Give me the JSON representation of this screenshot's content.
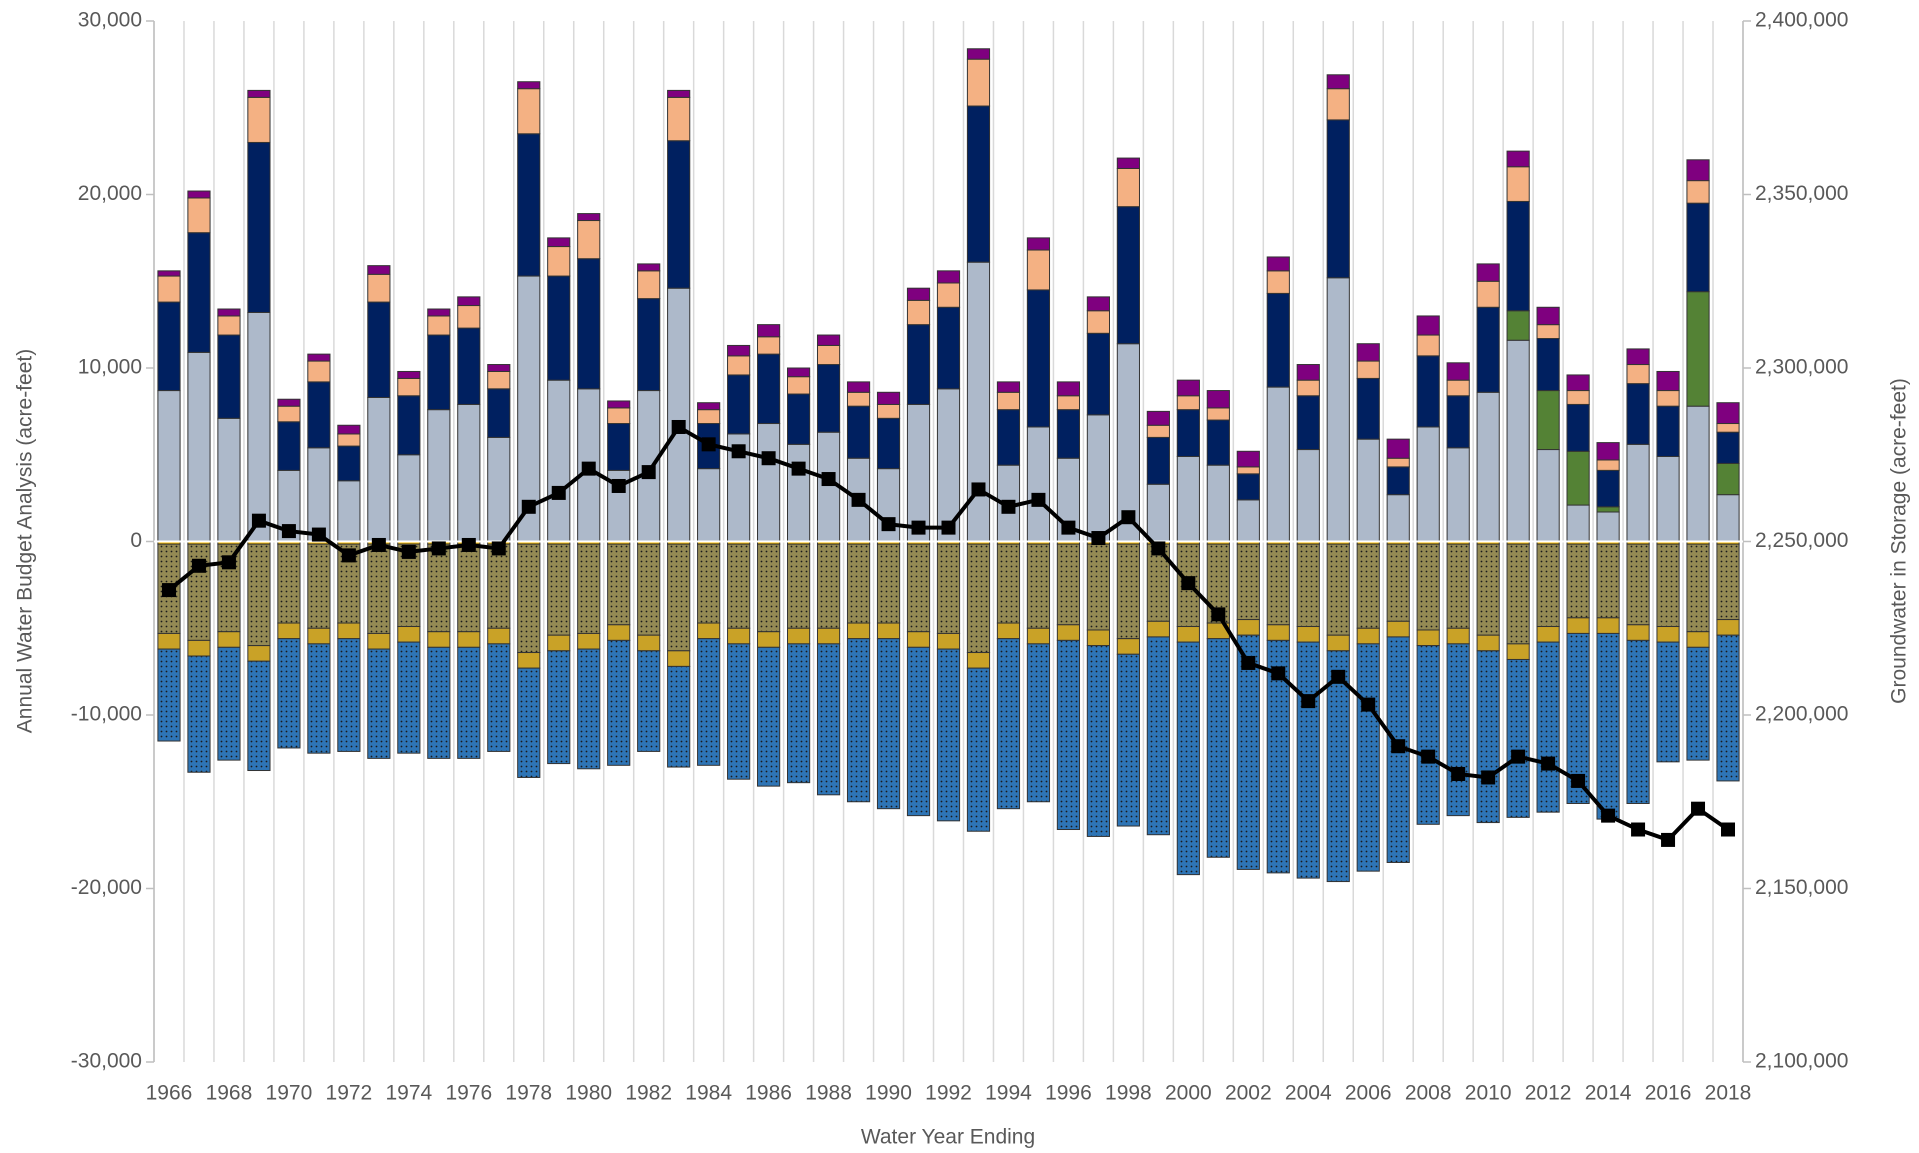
{
  "chart_data": {
    "type": "bar",
    "xlabel": "Water Year Ending",
    "ylabel": "Annual Water Budget Analysis (acre-feet)",
    "y2label": "Groundwater in Storage (acre-feet)",
    "categories": [
      "1966",
      null,
      "1968",
      null,
      "1970",
      null,
      "1972",
      null,
      "1974",
      null,
      "1976",
      null,
      "1978",
      null,
      "1980",
      null,
      "1982",
      null,
      "1984",
      null,
      "1986",
      null,
      "1988",
      null,
      "1990",
      null,
      "1992",
      null,
      "1994",
      null,
      "1996",
      null,
      "1998",
      null,
      "2000",
      null,
      "2002",
      null,
      "2004",
      null,
      "2006",
      null,
      "2008",
      null,
      "2010",
      null,
      "2012",
      null,
      "2014",
      null,
      "2016",
      null,
      "2018"
    ],
    "ylim": [
      -30000,
      30000
    ],
    "yticks": [
      {
        "value": -30000,
        "label": "-30,000"
      },
      {
        "value": -20000,
        "label": "-20,000"
      },
      {
        "value": -10000,
        "label": "-10,000"
      },
      0,
      {
        "value": 10000,
        "label": "10,000"
      },
      {
        "value": 20000,
        "label": "20,000"
      },
      {
        "value": 30000,
        "label": "30,000"
      }
    ],
    "y2lim": [
      2100000,
      2400000
    ],
    "y2ticks": [
      {
        "value": 2100000,
        "label": "2,100,000"
      },
      {
        "value": 2150000,
        "label": "2,150,000"
      },
      {
        "value": 2200000,
        "label": "2,200,000"
      },
      {
        "value": 2250000,
        "label": "2,250,000"
      },
      {
        "value": 2300000,
        "label": "2,300,000"
      },
      {
        "value": 2350000,
        "label": "2,350,000"
      },
      {
        "value": 2400000,
        "label": "2,400,000"
      }
    ],
    "series": [
      {
        "color": "#adb9ca",
        "values": [
          8700,
          10900,
          7100,
          13200,
          4100,
          5400,
          3500,
          8300,
          5000,
          7600,
          7900,
          6000,
          15300,
          9300,
          8800,
          4100,
          8700,
          14600,
          4200,
          6200,
          6800,
          5600,
          6300,
          4800,
          4200,
          7900,
          8800,
          16100,
          4400,
          6600,
          4800,
          7300,
          11400,
          3300,
          4900,
          4400,
          2400,
          8900,
          5300,
          15200,
          5900,
          2700,
          6600,
          5400,
          8600,
          11600,
          5300,
          2100,
          1700,
          5600,
          4900,
          7800,
          2700
        ]
      },
      {
        "color": "#548235",
        "values": [
          0,
          0,
          0,
          0,
          0,
          0,
          0,
          0,
          0,
          0,
          0,
          0,
          0,
          0,
          0,
          0,
          0,
          0,
          0,
          0,
          0,
          0,
          0,
          0,
          0,
          0,
          0,
          0,
          0,
          0,
          0,
          0,
          0,
          0,
          0,
          0,
          0,
          0,
          0,
          0,
          0,
          0,
          0,
          0,
          0,
          1700,
          3400,
          3100,
          300,
          0,
          0,
          6600,
          1800
        ]
      },
      {
        "color": "#002060",
        "values": [
          5100,
          6900,
          4800,
          9800,
          2800,
          3800,
          2000,
          5500,
          3400,
          4300,
          4400,
          2800,
          8200,
          6000,
          7500,
          2700,
          5300,
          8500,
          2600,
          3400,
          4000,
          2900,
          3900,
          3000,
          2900,
          4600,
          4700,
          9000,
          3200,
          7900,
          2800,
          4700,
          7900,
          2700,
          2700,
          2600,
          1500,
          5400,
          3100,
          9100,
          3500,
          1600,
          4100,
          3000,
          4900,
          6300,
          3000,
          2700,
          2100,
          3500,
          2900,
          5100,
          1800
        ]
      },
      {
        "color": "#f4b183",
        "values": [
          1500,
          2000,
          1100,
          2600,
          900,
          1200,
          700,
          1600,
          1000,
          1100,
          1300,
          1000,
          2600,
          1700,
          2200,
          900,
          1600,
          2500,
          800,
          1100,
          1000,
          1000,
          1100,
          800,
          800,
          1400,
          1400,
          2700,
          1000,
          2300,
          800,
          1300,
          2200,
          700,
          800,
          700,
          400,
          1300,
          900,
          1800,
          1000,
          500,
          1200,
          900,
          1500,
          2000,
          800,
          800,
          600,
          1100,
          900,
          1300,
          500
        ]
      },
      {
        "color": "#7f007f",
        "values": [
          300,
          400,
          400,
          400,
          400,
          400,
          500,
          500,
          400,
          400,
          500,
          400,
          400,
          500,
          400,
          400,
          400,
          400,
          400,
          600,
          700,
          500,
          600,
          600,
          700,
          700,
          700,
          600,
          600,
          700,
          800,
          800,
          600,
          800,
          900,
          1000,
          900,
          800,
          900,
          800,
          1000,
          1100,
          1100,
          1000,
          1000,
          900,
          1000,
          900,
          1000,
          900,
          1100,
          1200,
          1200
        ]
      },
      {
        "color": "#ffc000",
        "values": [
          -150,
          -150,
          -150,
          -150,
          -150,
          -150,
          -150,
          -150,
          -150,
          -150,
          -150,
          -150,
          -150,
          -150,
          -150,
          -150,
          -150,
          -150,
          -150,
          -150,
          -150,
          -150,
          -150,
          -150,
          -150,
          -150,
          -150,
          -150,
          -150,
          -150,
          -150,
          -150,
          -150,
          -150,
          -150,
          -150,
          -150,
          -150,
          -150,
          -150,
          -150,
          -150,
          -150,
          -150,
          -150,
          -150,
          -150,
          -150,
          -150,
          -150,
          -150,
          -150,
          -150
        ]
      },
      {
        "color": "#948a54",
        "pattern": "dots",
        "values": [
          -5150,
          -5550,
          -5050,
          -5850,
          -4550,
          -4850,
          -4550,
          -5150,
          -4750,
          -5050,
          -5050,
          -4850,
          -6250,
          -5250,
          -5150,
          -4650,
          -5250,
          -6150,
          -4550,
          -4850,
          -5050,
          -4850,
          -4850,
          -4550,
          -4550,
          -5050,
          -5150,
          -6250,
          -4550,
          -4850,
          -4650,
          -4950,
          -5450,
          -4450,
          -4750,
          -4550,
          -4350,
          -4650,
          -4750,
          -5250,
          -4850,
          -4450,
          -4950,
          -4850,
          -5250,
          -5750,
          -4750,
          -4250,
          -4250,
          -4650,
          -4750,
          -5050,
          -4350
        ]
      },
      {
        "color": "#c9a227",
        "values": [
          -900,
          -900,
          -900,
          -900,
          -900,
          -900,
          -900,
          -900,
          -900,
          -900,
          -900,
          -900,
          -900,
          -900,
          -900,
          -900,
          -900,
          -900,
          -900,
          -900,
          -900,
          -900,
          -900,
          -900,
          -900,
          -900,
          -900,
          -900,
          -900,
          -900,
          -900,
          -900,
          -900,
          -900,
          -900,
          -900,
          -900,
          -900,
          -900,
          -900,
          -900,
          -900,
          -900,
          -900,
          -900,
          -900,
          -900,
          -900,
          -900,
          -900,
          -900,
          -900,
          -900
        ]
      },
      {
        "color": "#2e75b6",
        "pattern": "dots",
        "values": [
          -5300,
          -6700,
          -6500,
          -6300,
          -6300,
          -6300,
          -6500,
          -6300,
          -6400,
          -6400,
          -6400,
          -6200,
          -6300,
          -6500,
          -6900,
          -7200,
          -5800,
          -5800,
          -7300,
          -7800,
          -8000,
          -8000,
          -8700,
          -9400,
          -9800,
          -9700,
          -9900,
          -9400,
          -9800,
          -9100,
          -10900,
          -11000,
          -9900,
          -11400,
          -13400,
          -12600,
          -13500,
          -13400,
          -13600,
          -13300,
          -13100,
          -13000,
          -10300,
          -9900,
          -9900,
          -9100,
          -9800,
          -9800,
          -10700,
          -9400,
          -6900,
          -6500,
          -8400
        ]
      },
      {
        "type": "line",
        "axis": "y2",
        "color": "#000000",
        "values": [
          2236000,
          2243000,
          2244000,
          2256000,
          2253000,
          2252000,
          2246000,
          2249000,
          2247000,
          2248000,
          2249000,
          2248000,
          2260000,
          2264000,
          2271000,
          2266000,
          2270000,
          2283000,
          2278000,
          2276000,
          2274000,
          2271000,
          2268000,
          2262000,
          2255000,
          2254000,
          2254000,
          2265000,
          2260000,
          2262000,
          2254000,
          2251000,
          2257000,
          2248000,
          2238000,
          2229000,
          2215000,
          2212000,
          2204000,
          2211000,
          2203000,
          2191000,
          2188000,
          2183000,
          2182000,
          2188000,
          2186000,
          2181000,
          2171000,
          2167000,
          2164000,
          2173000,
          2167000
        ]
      }
    ]
  }
}
